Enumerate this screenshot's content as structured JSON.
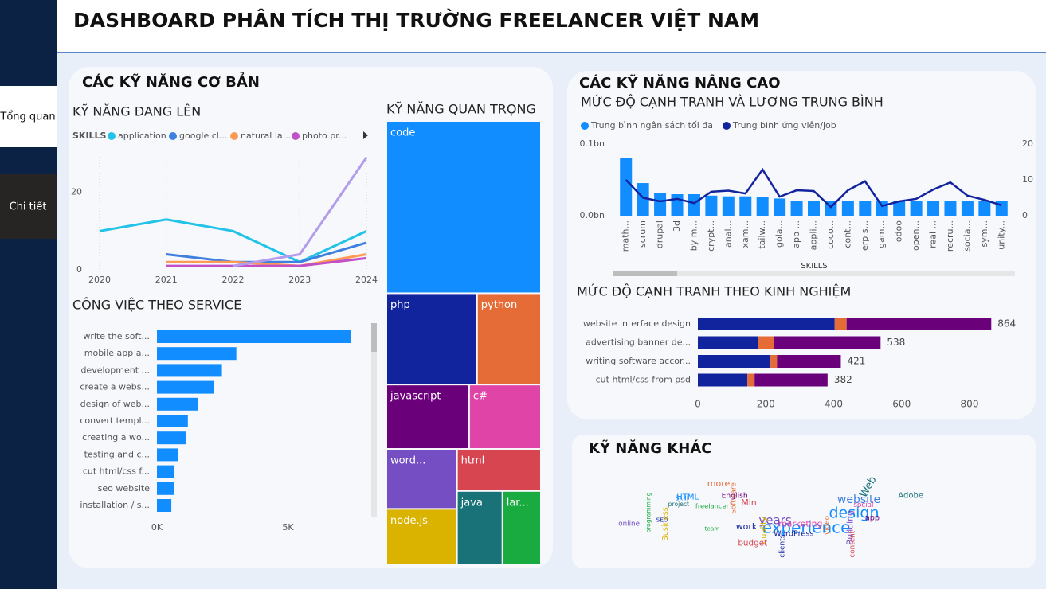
{
  "sidebar": {
    "items": [
      "Tổng quan",
      "Chi tiết"
    ]
  },
  "header": {
    "title": "DASHBOARD PHÂN TÍCH THỊ TRƯỜNG FREELANCER VIỆT NAM"
  },
  "panels": {
    "basic": "CÁC KỸ NĂNG CƠ BẢN",
    "advanced": "CÁC KỸ NĂNG NÂNG CAO",
    "other": "KỸ NĂNG KHÁC"
  },
  "chart_data": [
    {
      "type": "line",
      "title": "KỸ NĂNG ĐANG LÊN",
      "legend_title": "SKILLS",
      "x": [
        2020,
        2021,
        2022,
        2023,
        2024
      ],
      "xlim": [
        2020,
        2024
      ],
      "xticks": [
        2020,
        2021,
        2022,
        2023,
        2024
      ],
      "ylim": [
        0,
        30
      ],
      "yticks": [
        0,
        20
      ],
      "grid": true,
      "series": [
        {
          "name": "application",
          "color": "#22c3e6",
          "values": [
            10,
            13,
            10,
            2,
            10
          ]
        },
        {
          "name": "google cl...",
          "color": "#3f7fe0",
          "values": [
            null,
            4,
            2,
            2,
            7
          ]
        },
        {
          "name": "natural la...",
          "color": "#ff9a55",
          "values": [
            null,
            2,
            2,
            1,
            4
          ]
        },
        {
          "name": "photo pr...",
          "color": "#c04fc8",
          "values": [
            null,
            1,
            1,
            1,
            3
          ]
        },
        {
          "color": "#b39ceb",
          "values": [
            null,
            null,
            1,
            4,
            29
          ]
        }
      ]
    },
    {
      "type": "bar",
      "orientation": "horizontal",
      "title": "CÔNG VIỆC THEO SERVICE",
      "color": "#118dff",
      "categories": [
        "write the soft...",
        "mobile app a...",
        "development ...",
        "create a webs...",
        "design of web...",
        "convert templ...",
        "creating a wo...",
        "testing and c...",
        "cut html/css f...",
        "seo website",
        "installation / s..."
      ],
      "values": [
        7390,
        3030,
        2480,
        2180,
        1580,
        1180,
        1120,
        820,
        670,
        640,
        550
      ],
      "xlim": [
        0,
        8300
      ],
      "xticks": [
        {
          "value": 0,
          "label": "0K"
        },
        {
          "value": 5000,
          "label": "5K"
        }
      ]
    },
    {
      "type": "treemap",
      "title": "KỸ NĂNG QUAN TRỌNG",
      "categories": [
        "code",
        "php",
        "python",
        "javascript",
        "c#",
        "word...",
        "node.js",
        "html",
        "java",
        "lar..."
      ],
      "values": [
        415,
        129,
        91,
        83,
        72,
        66,
        61,
        55,
        52,
        44
      ],
      "colors": [
        "#118dff",
        "#12239e",
        "#e66c37",
        "#6b007b",
        "#e044a7",
        "#744ec2",
        "#d9b300",
        "#d64550",
        "#197278",
        "#1aab40"
      ]
    },
    {
      "type": "combo",
      "title": "MỨC ĐỘ CẠNH TRANH VÀ LƯƠNG TRUNG BÌNH",
      "x_label": "SKILLS",
      "legend": "top-left",
      "categories": [
        "math...",
        "scrum",
        "drupal",
        "3d",
        "by m...",
        "crypt...",
        "anal...",
        "xam...",
        "tailw...",
        "gola...",
        "app ...",
        "appli...",
        "coco...",
        "cont...",
        "erp s...",
        "gam...",
        "odoo",
        "open...",
        "real ...",
        "recru...",
        "socia...",
        "sym...",
        "unity..."
      ],
      "series": [
        {
          "name": "Trung bình ngân sách tối đa",
          "type": "bar",
          "color": "#118dff",
          "values": [
            80000000,
            45500000,
            32000000,
            30000000,
            30000000,
            28000000,
            27000000,
            27000000,
            26000000,
            24000000,
            20000000,
            20000000,
            20000000,
            20000000,
            20000000,
            20000000,
            20000000,
            20000000,
            20000000,
            20000000,
            20000000,
            20000000,
            20000000
          ]
        },
        {
          "name": "Trung bình ứng viên/job",
          "type": "line",
          "color": "#12239e",
          "axis": "y2",
          "values": [
            10,
            5,
            4,
            4.7,
            3.5,
            6.7,
            7,
            6.2,
            12.9,
            5.3,
            7.1,
            6.9,
            2.4,
            7.1,
            9.6,
            2.7,
            4,
            4.7,
            7.3,
            9.3,
            5.6,
            4.4,
            2.9
          ]
        }
      ],
      "ylim": [
        0,
        100000000
      ],
      "yticks": [
        {
          "value": 0,
          "label": "0.0bn"
        },
        {
          "value": 100000000,
          "label": "0.1bn"
        }
      ],
      "y2lim": [
        0,
        20
      ],
      "y2ticks": [
        0,
        10,
        20
      ]
    },
    {
      "type": "stacked-bar",
      "orientation": "horizontal",
      "title": "MỨC ĐỘ CẠNH TRANH THEO KINH NGHIỆM",
      "categories": [
        "website interface design",
        "advertising banner de...",
        "writing software accor...",
        "cut html/css from psd"
      ],
      "series": [
        {
          "color": "#12239e",
          "values": [
            403,
            178,
            214,
            146
          ]
        },
        {
          "color": "#e66c37",
          "values": [
            35,
            47,
            19,
            21
          ]
        },
        {
          "color": "#6b007b",
          "values": [
            426,
            313,
            188,
            215
          ]
        }
      ],
      "totals": [
        864,
        538,
        421,
        382
      ],
      "xlim": [
        0,
        900
      ],
      "xticks": [
        0,
        200,
        400,
        600,
        800
      ]
    },
    {
      "type": "wordcloud",
      "words": [
        "experience",
        "design",
        "website",
        "years",
        "Web",
        "work",
        "more",
        "Min",
        "programming",
        "SEO",
        "Skill",
        "Software",
        "English",
        "marketing",
        "Building",
        "Business",
        "content",
        "project",
        "team",
        "clients",
        "HTML",
        "video",
        "app",
        "social",
        "online",
        "quality",
        "budget",
        "Adobe",
        "freelancer",
        "WordPress"
      ]
    }
  ]
}
